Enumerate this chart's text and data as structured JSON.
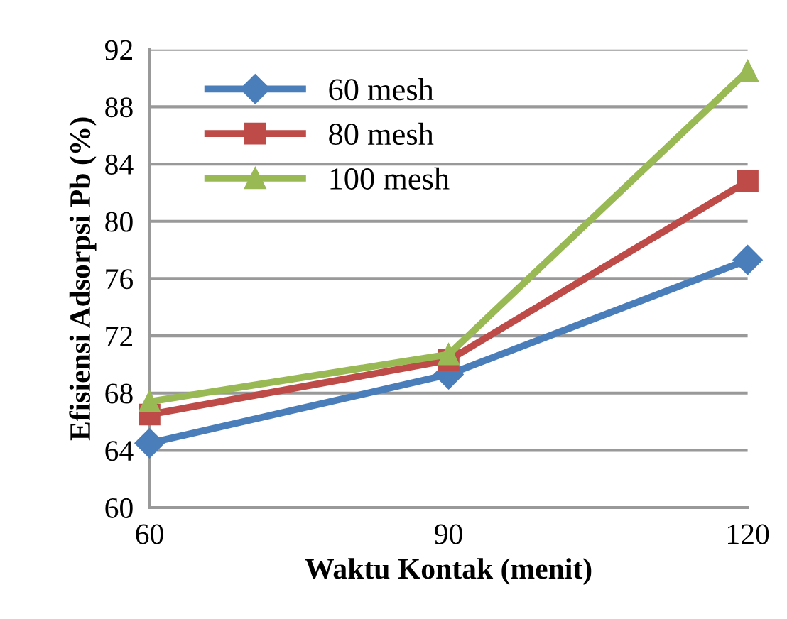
{
  "chart_data": {
    "type": "line",
    "xlabel": "Waktu Kontak (menit)",
    "ylabel": "Efisiensi Adsorpsi Pb (%)",
    "x": [
      60,
      90,
      120
    ],
    "xlim": [
      60,
      120
    ],
    "xticks": [
      60,
      90,
      120
    ],
    "ylim": [
      60,
      92
    ],
    "yticks": [
      60,
      64,
      68,
      72,
      76,
      80,
      84,
      88,
      92
    ],
    "grid": "y",
    "legend": "top left",
    "series": [
      {
        "name": "60 mesh",
        "color": "#4a7ebb",
        "marker": "diamond",
        "values": [
          64.5,
          69.3,
          77.3
        ]
      },
      {
        "name": "80 mesh",
        "color": "#be4b48",
        "marker": "square",
        "values": [
          66.5,
          70.3,
          82.8
        ]
      },
      {
        "name": "100 mesh",
        "color": "#98b954",
        "marker": "triangle",
        "values": [
          67.4,
          70.7,
          90.5
        ]
      }
    ]
  }
}
